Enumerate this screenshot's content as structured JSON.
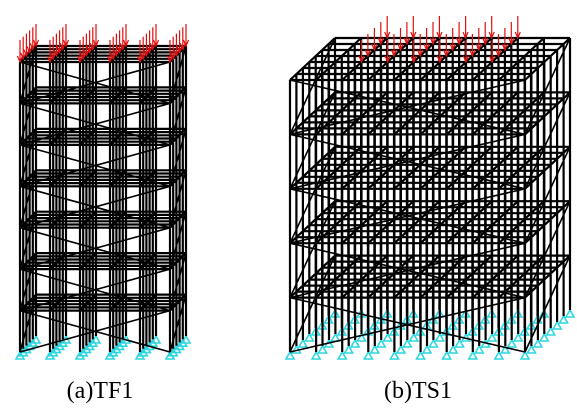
{
  "figures": [
    {
      "caption": "(a)TF1"
    },
    {
      "caption": "(b)TS1"
    }
  ]
}
